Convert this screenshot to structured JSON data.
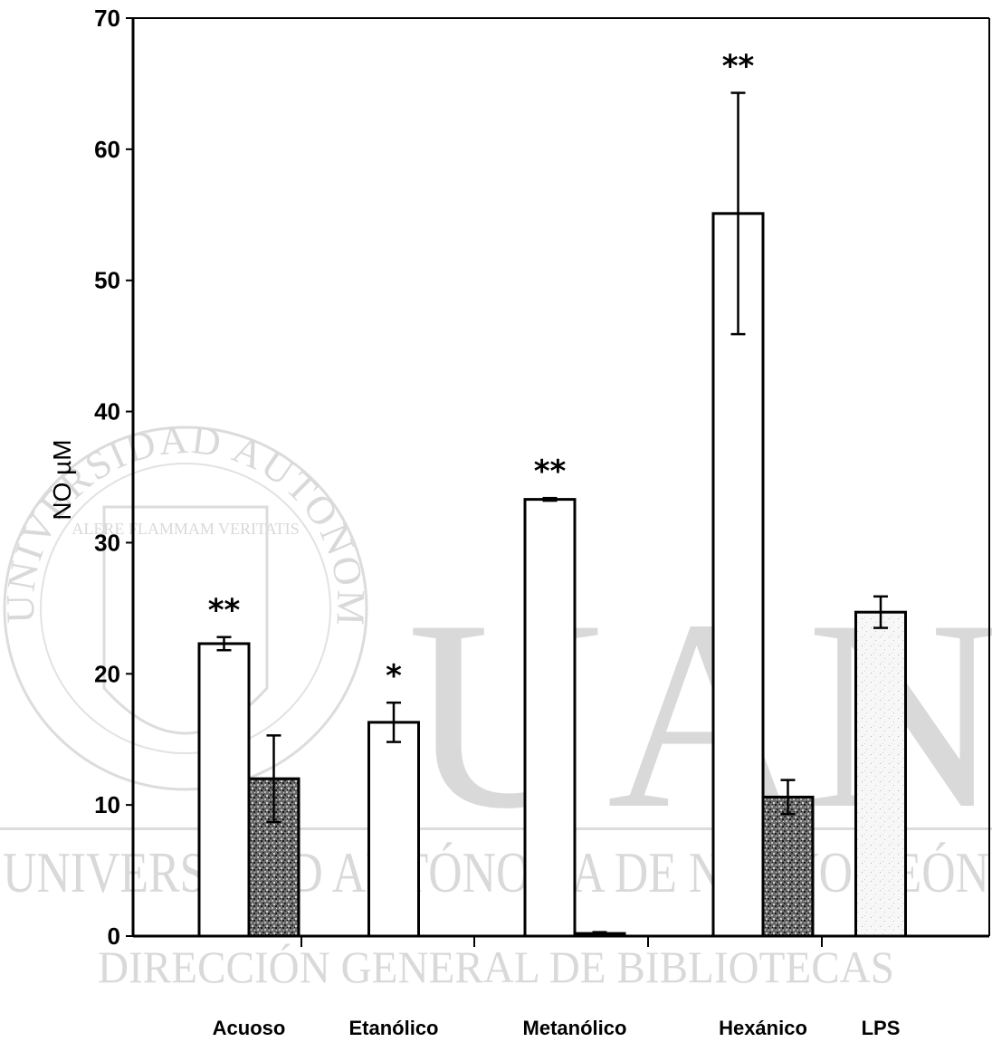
{
  "chart_data": {
    "type": "bar",
    "ylabel": "NO µM",
    "xlabel": "",
    "ylim": [
      0,
      70
    ],
    "yticks": [
      0,
      10,
      20,
      30,
      40,
      50,
      60,
      70
    ],
    "grid": false,
    "categories": [
      "Acuoso",
      "Etanólico",
      "Metanólico",
      "Hexánico",
      "LPS"
    ],
    "series": [
      {
        "style": "white",
        "values": [
          22.3,
          16.3,
          33.3,
          55.1,
          null
        ],
        "errors": [
          0.5,
          1.5,
          0.1,
          9.2,
          null
        ],
        "significance": [
          "**",
          "*",
          "**",
          "**",
          null
        ]
      },
      {
        "style": "dark-speckled",
        "values": [
          12.0,
          null,
          0.2,
          10.6,
          null
        ],
        "errors": [
          3.3,
          null,
          0.1,
          1.3,
          null
        ],
        "significance": [
          null,
          null,
          null,
          null,
          null
        ]
      },
      {
        "style": "light-speckled",
        "values": [
          null,
          null,
          null,
          null,
          24.7
        ],
        "errors": [
          null,
          null,
          null,
          null,
          1.2
        ],
        "significance": [
          null,
          null,
          null,
          null,
          null
        ]
      }
    ],
    "colors": {
      "white": "#ffffff",
      "dark-speckled": "#555555",
      "light-speckled": "#f4f4f4",
      "axis": "#000000"
    }
  },
  "watermark": {
    "seal_text": "UNIVERSIDAD AUTONOMA DE NUEVO LEON",
    "seal_motto": "ALERE FLAMMAM VERITATIS",
    "big_letters": "UANL",
    "line1": "UNIVERSIDAD AUTÓNOMA DE NUEVO LEÓN",
    "line2": "DIRECCIÓN GENERAL DE BIBLIOTECAS"
  }
}
